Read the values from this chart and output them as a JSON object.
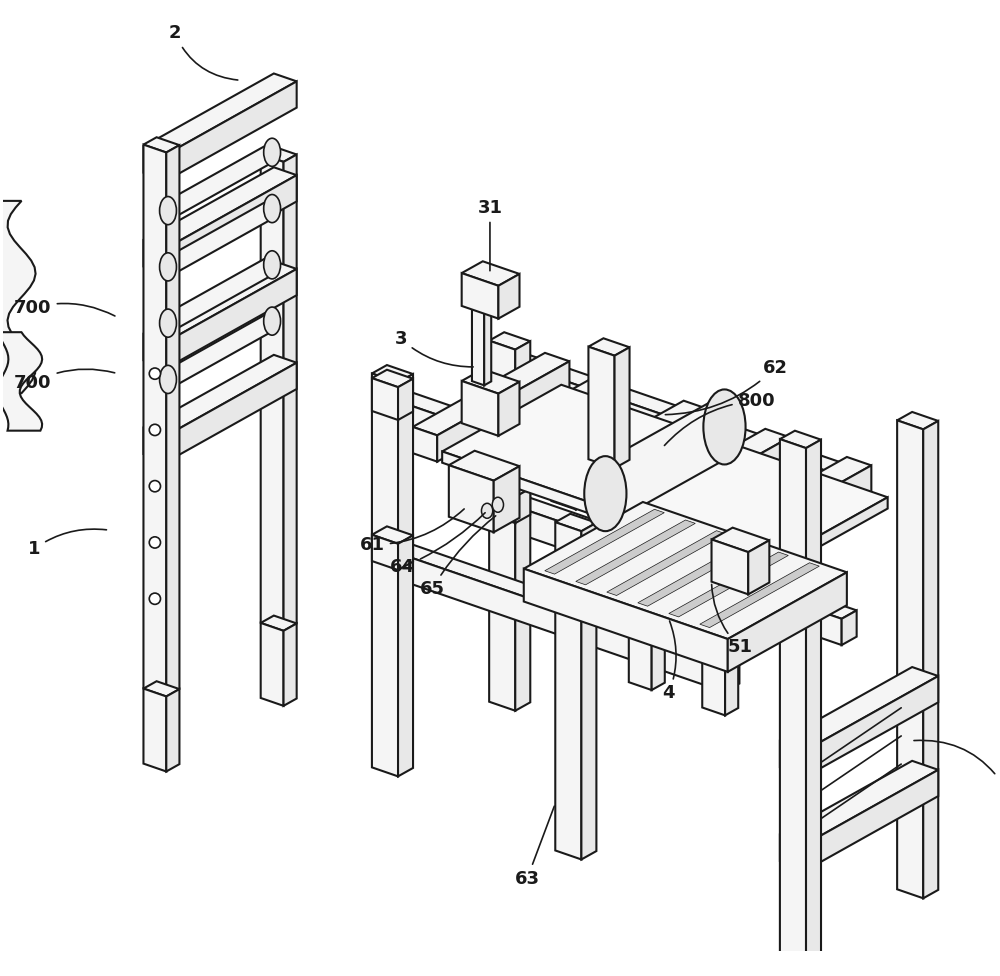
{
  "bg_color": "#ffffff",
  "line_color": "#1a1a1a",
  "lw": 1.5,
  "fig_width": 10.0,
  "fig_height": 9.76,
  "label_fontsize": 13,
  "label_fontweight": "bold",
  "face_light": "#f5f5f5",
  "face_mid": "#e8e8e8",
  "face_dark": "#d8d8d8"
}
